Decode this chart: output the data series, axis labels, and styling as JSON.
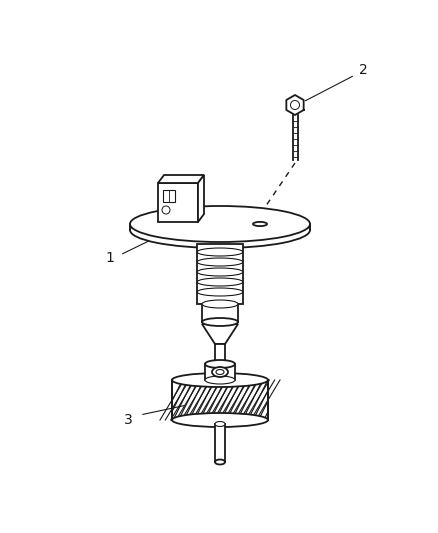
{
  "background_color": "#ffffff",
  "line_color": "#1a1a1a",
  "fig_width": 4.38,
  "fig_height": 5.33,
  "dpi": 100,
  "label_fontsize": 10
}
